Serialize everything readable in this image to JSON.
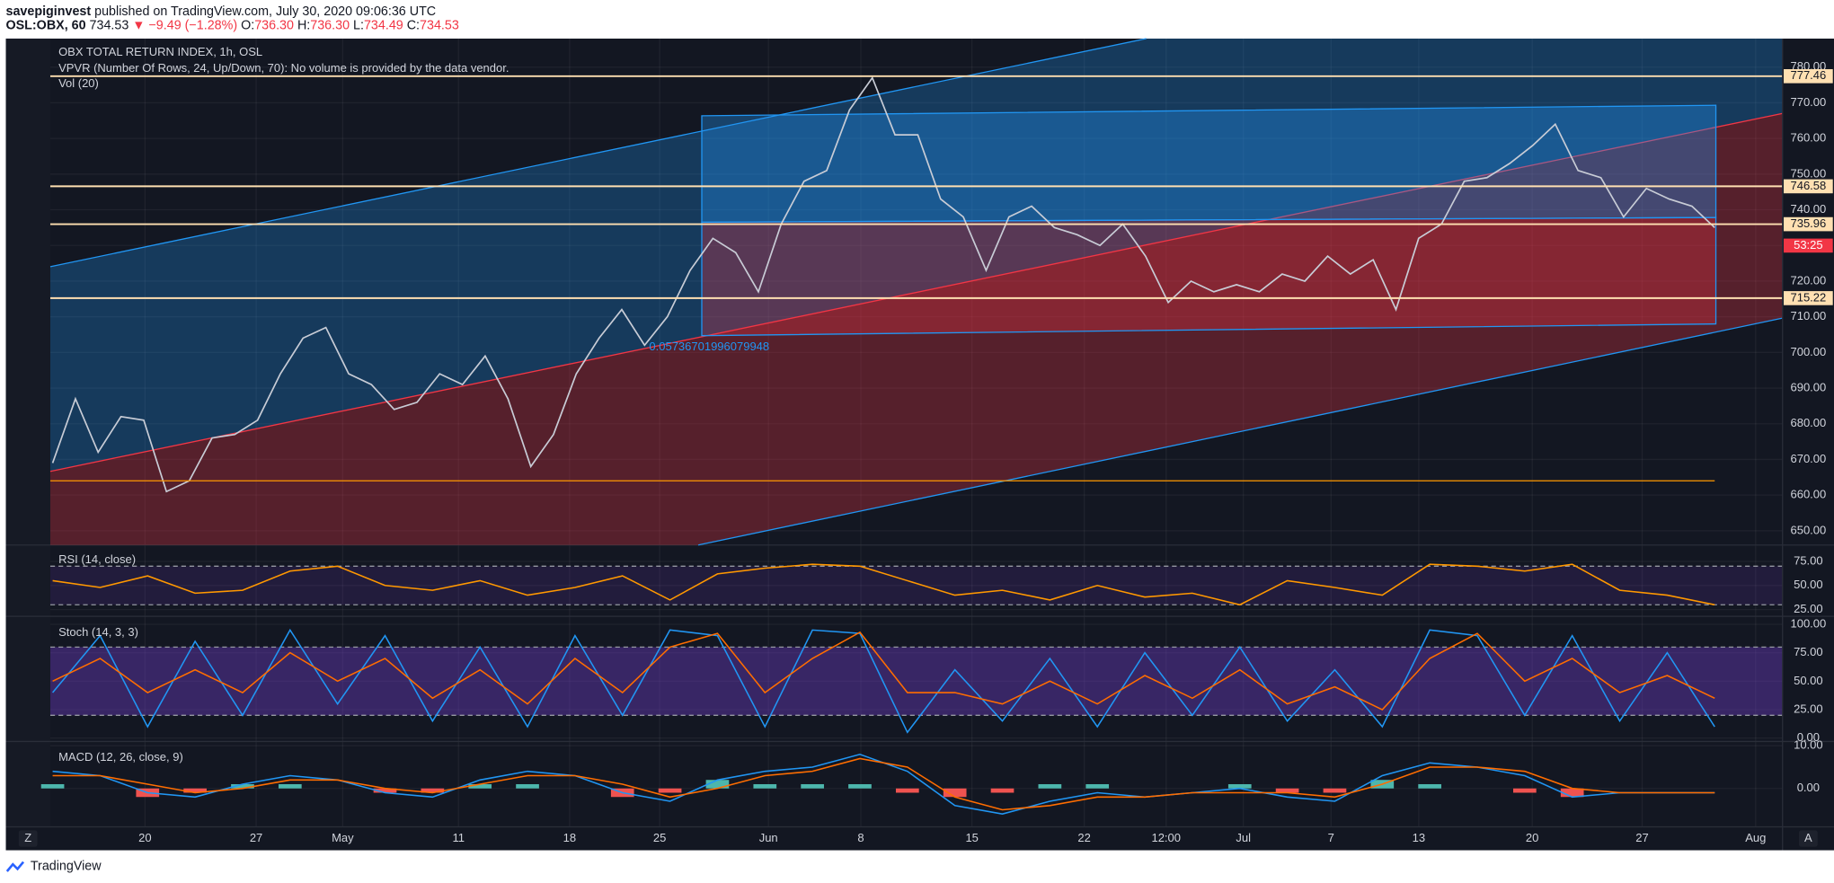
{
  "header": {
    "publisher": "savepiginvest",
    "published": "published on TradingView.com, July 30, 2020 09:06:36 UTC",
    "symbol": "OSL:OBX, 60",
    "last": "734.53",
    "change": "▼ −9.49 (−1.28%)",
    "open": {
      "label": "O:",
      "value": "736.30"
    },
    "high": {
      "label": "H:",
      "value": "736.30"
    },
    "low": {
      "label": "L:",
      "value": "734.49"
    },
    "close": {
      "label": "C:",
      "value": "734.53"
    }
  },
  "chart_data": [
    {
      "type": "line",
      "title": "OBX TOTAL RETURN INDEX, 1h, OSL",
      "subtitle": "VPVR (Number Of Rows, 24, Up/Down, 70): No volume is provided by the data vendor.",
      "volume_label": "Vol (20)",
      "color": "#c8ccd6",
      "values": [
        669,
        687,
        672,
        682,
        681,
        661,
        664,
        676,
        677,
        681,
        694,
        704,
        707,
        694,
        691,
        684,
        686,
        694,
        691,
        699,
        687,
        668,
        677,
        694,
        704,
        712,
        702,
        710,
        723,
        732,
        728,
        717,
        736,
        748,
        751,
        768,
        777,
        761,
        761,
        743,
        738,
        723,
        738,
        741,
        735,
        733,
        730,
        736,
        727,
        714,
        720,
        717,
        719,
        717,
        722,
        720,
        727,
        722,
        726,
        712,
        732,
        736,
        748,
        749,
        753,
        758,
        764,
        751,
        749,
        738,
        746,
        743,
        741,
        735
      ],
      "levels": [
        777.46,
        746.58,
        735.96,
        715.22
      ],
      "level_color": "#ffe0b2",
      "support_level": 664,
      "support_color": "#ff9800",
      "drawing_label": "0.05736701996079948",
      "countdown": "53:25",
      "ylim": [
        646,
        788
      ],
      "yticks": [
        {
          "value": 650,
          "label": "650.00"
        },
        {
          "value": 660,
          "label": "660.00"
        },
        {
          "value": 670,
          "label": "670.00"
        },
        {
          "value": 680,
          "label": "680.00"
        },
        {
          "value": 690,
          "label": "690.00"
        },
        {
          "value": 700,
          "label": "700.00"
        },
        {
          "value": 710,
          "label": "710.00"
        },
        {
          "value": 720,
          "label": "720.00"
        },
        {
          "value": 730,
          "label": "730.00"
        },
        {
          "value": 740,
          "label": "740.00"
        },
        {
          "value": 750,
          "label": "750.00"
        },
        {
          "value": 760,
          "label": "760.00"
        },
        {
          "value": 770,
          "label": "770.00"
        },
        {
          "value": 780,
          "label": "780.00"
        }
      ]
    },
    {
      "type": "line",
      "title": "RSI (14, close)",
      "series": [
        {
          "color": "#ff9800",
          "values": [
            55,
            48,
            60,
            42,
            45,
            65,
            70,
            50,
            45,
            55,
            40,
            48,
            60,
            35,
            62,
            68,
            72,
            70,
            55,
            40,
            45,
            35,
            50,
            38,
            42,
            30,
            55,
            48,
            40,
            72,
            70,
            65,
            72,
            45,
            40,
            30
          ]
        }
      ],
      "band": [
        30,
        70
      ],
      "ylim": [
        18,
        92
      ],
      "yticks": [
        {
          "value": 25,
          "label": "25.00"
        },
        {
          "value": 50,
          "label": "50.00"
        },
        {
          "value": 75,
          "label": "75.00"
        }
      ]
    },
    {
      "type": "line",
      "title": "Stoch (14, 3, 3)",
      "series": [
        {
          "color": "#2196f3",
          "values": [
            40,
            90,
            10,
            85,
            20,
            95,
            30,
            90,
            15,
            80,
            10,
            90,
            20,
            95,
            90,
            10,
            95,
            92,
            5,
            60,
            15,
            70,
            10,
            75,
            20,
            80,
            15,
            60,
            10,
            95,
            90,
            20,
            90,
            15,
            75,
            10
          ]
        },
        {
          "color": "#ff6d00",
          "values": [
            50,
            70,
            40,
            60,
            40,
            75,
            50,
            70,
            35,
            60,
            30,
            70,
            40,
            80,
            92,
            40,
            70,
            93,
            40,
            40,
            30,
            50,
            30,
            55,
            35,
            60,
            30,
            45,
            25,
            70,
            92,
            50,
            70,
            40,
            55,
            35
          ]
        }
      ],
      "band": [
        20,
        80
      ],
      "ylim": [
        -3,
        107
      ],
      "yticks": [
        {
          "value": 0,
          "label": "0.00"
        },
        {
          "value": 25,
          "label": "25.00"
        },
        {
          "value": 50,
          "label": "50.00"
        },
        {
          "value": 75,
          "label": "75.00"
        },
        {
          "value": 100,
          "label": "100.00"
        }
      ]
    },
    {
      "type": "line",
      "title": "MACD (12, 26, close, 9)",
      "series": [
        {
          "color": "#2196f3",
          "values": [
            4,
            3,
            -1,
            -2,
            1,
            3,
            2,
            -1,
            -2,
            2,
            4,
            3,
            -1,
            -3,
            2,
            4,
            5,
            8,
            4,
            -4,
            -6,
            -3,
            -1,
            -2,
            -1,
            0,
            -2,
            -3,
            3,
            6,
            5,
            3,
            -2,
            -1,
            -1,
            -1
          ]
        },
        {
          "color": "#ff6d00",
          "values": [
            3,
            3,
            1,
            -1,
            0,
            2,
            2,
            0,
            -1,
            1,
            3,
            3,
            1,
            -2,
            0,
            3,
            4,
            7,
            5,
            -2,
            -5,
            -4,
            -2,
            -2,
            -1,
            -1,
            -1,
            -2,
            1,
            5,
            5,
            4,
            0,
            -1,
            -1,
            -1
          ]
        }
      ],
      "histogram": [
        1,
        0,
        -2,
        -1,
        1,
        1,
        0,
        -1,
        -1,
        1,
        1,
        0,
        -2,
        -1,
        2,
        1,
        1,
        1,
        -1,
        -2,
        -1,
        1,
        1,
        0,
        0,
        1,
        -1,
        -1,
        2,
        1,
        0,
        -1,
        -2,
        0,
        0,
        0
      ],
      "histogram_colors": [
        "#4db6ac",
        "#ef5350"
      ],
      "ylim": [
        -9,
        11
      ],
      "yticks": [
        {
          "value": 0,
          "label": "0.00"
        },
        {
          "value": 10,
          "label": "10.00"
        }
      ]
    }
  ],
  "x_axis_labels": [
    "20",
    "27",
    "May",
    "11",
    "18",
    "25",
    "Jun",
    "8",
    "15",
    "22",
    "12:00",
    "Jul",
    "7",
    "13",
    "20",
    "27",
    "Aug"
  ],
  "buttons": {
    "left": "Z",
    "right": "A"
  },
  "footer": {
    "brand": "TradingView"
  }
}
